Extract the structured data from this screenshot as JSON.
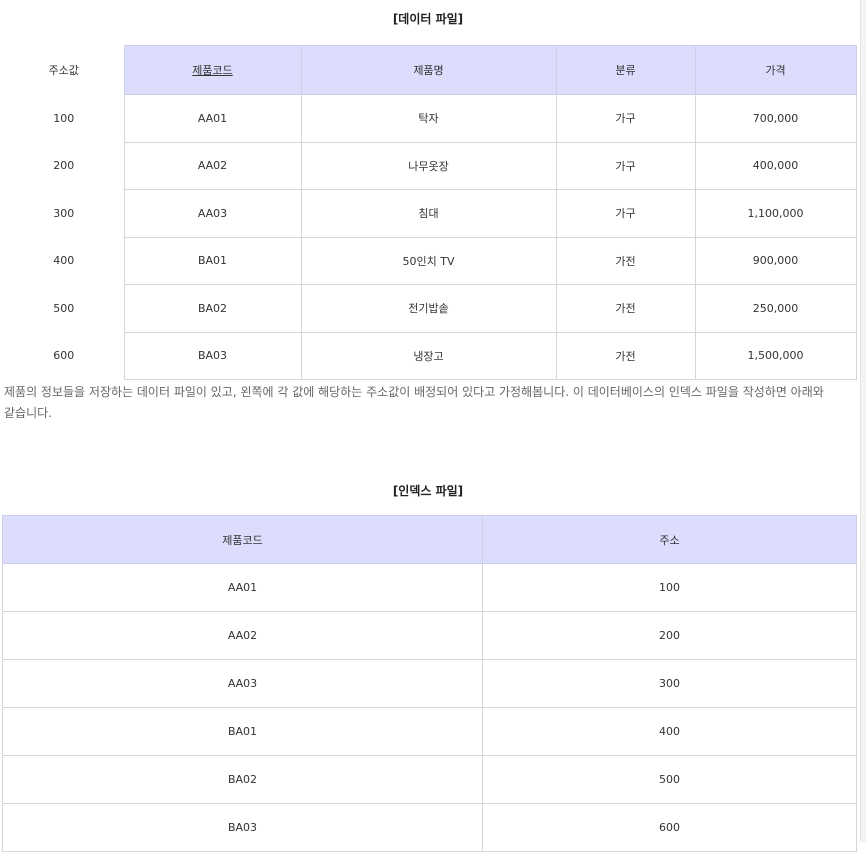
{
  "data_file": {
    "caption": "[데이터 파일]",
    "headers": {
      "address": "주소값",
      "code": "제품코드",
      "name": "제품명",
      "category": "분류",
      "price": "가격"
    },
    "rows": [
      {
        "address": "100",
        "code": "AA01",
        "name": "탁자",
        "category": "가구",
        "price": "700,000"
      },
      {
        "address": "200",
        "code": "AA02",
        "name": "나무옷장",
        "category": "가구",
        "price": "400,000"
      },
      {
        "address": "300",
        "code": "AA03",
        "name": "침대",
        "category": "가구",
        "price": "1,100,000"
      },
      {
        "address": "400",
        "code": "BA01",
        "name": "50인치 TV",
        "category": "가전",
        "price": "900,000"
      },
      {
        "address": "500",
        "code": "BA02",
        "name": "전기밥솥",
        "category": "가전",
        "price": "250,000"
      },
      {
        "address": "600",
        "code": "BA03",
        "name": "냉장고",
        "category": "가전",
        "price": "1,500,000"
      }
    ]
  },
  "description": "제품의 정보들을 저장하는 데이터 파일이 있고, 왼쪽에 각 값에 해당하는 주소값이 배정되어 있다고 가정해봅니다. 이 데이터베이스의 인덱스 파일을 작성하면 아래와 같습니다.",
  "index_file": {
    "caption": "[인덱스 파일]",
    "headers": {
      "code": "제품코드",
      "address": "주소"
    },
    "rows": [
      {
        "code": "AA01",
        "address": "100"
      },
      {
        "code": "AA02",
        "address": "200"
      },
      {
        "code": "AA03",
        "address": "300"
      },
      {
        "code": "BA01",
        "address": "400"
      },
      {
        "code": "BA02",
        "address": "500"
      },
      {
        "code": "BA03",
        "address": "600"
      }
    ]
  }
}
